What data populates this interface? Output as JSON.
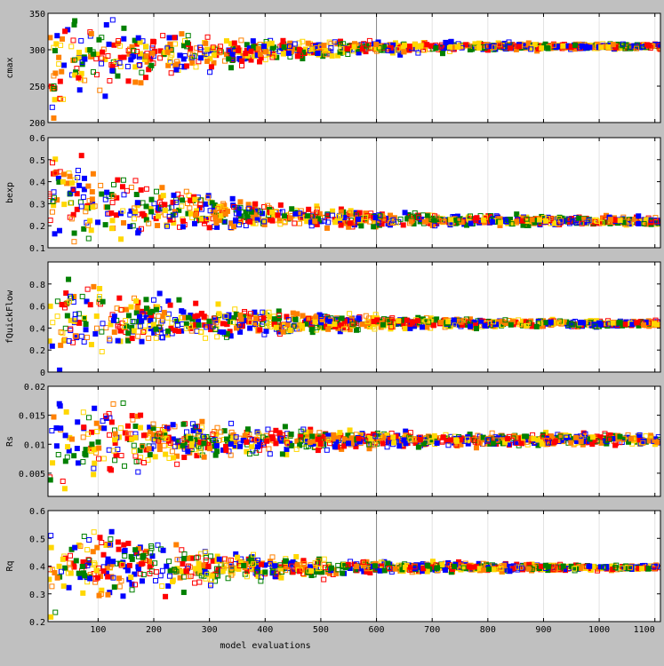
{
  "x_axis": {
    "label": "model evaluations",
    "ticks": [
      100,
      200,
      300,
      400,
      500,
      600,
      700,
      800,
      900,
      1000,
      1100
    ]
  },
  "colors": {
    "background": "#c0c0c0",
    "plot_area": "#ffffff",
    "series": [
      "#0000ff",
      "#ff0000",
      "#008000",
      "#ff8000",
      "#ffd700"
    ]
  },
  "chart_data": [
    {
      "type": "scatter",
      "ylabel": "cmax",
      "ylim": [
        200,
        350
      ],
      "yticks": [
        "200",
        "250",
        "300",
        "350"
      ],
      "xlim": [
        10,
        1110
      ],
      "grid": true,
      "legend": "none",
      "start": {
        "mean": 275,
        "spread": 75
      },
      "converge": 305,
      "end_spread": 3
    },
    {
      "type": "scatter",
      "ylabel": "bexp",
      "ylim": [
        0.1,
        0.6
      ],
      "yticks": [
        "0.1",
        "0.2",
        "0.3",
        "0.4",
        "0.5",
        "0.6"
      ],
      "xlim": [
        10,
        1110
      ],
      "grid": true,
      "legend": "none",
      "start": {
        "mean": 0.35,
        "spread": 0.25
      },
      "converge": 0.22,
      "end_spread": 0.015
    },
    {
      "type": "scatter",
      "ylabel": "fQuickFlow",
      "ylim": [
        0,
        1
      ],
      "yticks": [
        "0",
        "0.2",
        "0.4",
        "0.6",
        "0.8"
      ],
      "xlim": [
        10,
        1110
      ],
      "grid": true,
      "legend": "none",
      "start": {
        "mean": 0.5,
        "spread": 0.48
      },
      "converge": 0.44,
      "end_spread": 0.025
    },
    {
      "type": "scatter",
      "ylabel": "Rs",
      "ylim": [
        0.001,
        0.02
      ],
      "yticks": [
        "0.005",
        "0.01",
        "0.015",
        "0.02"
      ],
      "xlim": [
        10,
        1110
      ],
      "grid": true,
      "legend": "none",
      "start": {
        "mean": 0.01,
        "spread": 0.009
      },
      "converge": 0.0108,
      "end_spread": 0.0008
    },
    {
      "type": "scatter",
      "ylabel": "Rq",
      "ylim": [
        0.2,
        0.6
      ],
      "yticks": [
        "0.2",
        "0.3",
        "0.4",
        "0.5",
        "0.6"
      ],
      "xlim": [
        10,
        1110
      ],
      "grid": true,
      "legend": "none",
      "start": {
        "mean": 0.4,
        "spread": 0.2
      },
      "converge": 0.395,
      "end_spread": 0.008
    }
  ]
}
